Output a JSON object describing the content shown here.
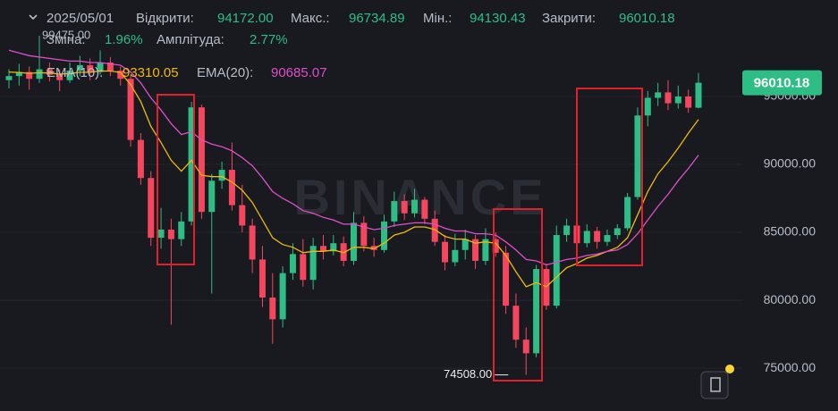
{
  "chart_data": {
    "type": "candlestick",
    "header": {
      "date": "2025/05/01",
      "open_label": "Відкрити:",
      "open": "94172.00",
      "high_label": "Макс.:",
      "high": "96734.89",
      "low_label": "Мін.:",
      "low": "94130.43",
      "close_label": "Закрити:",
      "close": "96010.18",
      "change_label": "Зміна:",
      "change": "1.96%",
      "amplitude_label": "Амплітуда:",
      "amplitude": "2.77%"
    },
    "watermark": "BINANCE",
    "candles": {
      "up_color": "#2ebd85",
      "down_color": "#f6465d",
      "open": [
        96200,
        96500,
        96800,
        96300,
        97000,
        96600,
        96200,
        96900,
        97300,
        96800,
        97500,
        96900,
        96300,
        91800,
        89000,
        84600,
        85200,
        84500,
        85800,
        94200,
        86500,
        88800,
        89600,
        87000,
        85500,
        83000,
        80200,
        78600,
        82000,
        83400,
        81500,
        84000,
        83600,
        84200,
        82900,
        85700,
        84000,
        83700,
        85800,
        87300,
        86400,
        87400,
        86000,
        84300,
        82800,
        83700,
        84500,
        82900,
        84500,
        83500,
        79600,
        77100,
        76100,
        82300,
        79600,
        84800,
        85500,
        84200,
        85100,
        84300,
        84800,
        85300,
        87600,
        93600,
        94900,
        95300,
        94500,
        95000,
        94172
      ],
      "high": [
        97000,
        97400,
        97200,
        99475,
        97500,
        97000,
        97500,
        98000,
        97800,
        98400,
        97900,
        97200,
        96600,
        92300,
        89500,
        86800,
        86000,
        86500,
        94600,
        94400,
        89300,
        90200,
        91600,
        88500,
        86000,
        84000,
        82000,
        82500,
        84200,
        84500,
        84600,
        84800,
        84800,
        84700,
        86500,
        86200,
        84600,
        86300,
        88000,
        87800,
        88200,
        87600,
        86600,
        84800,
        84900,
        85200,
        84800,
        85300,
        85000,
        84000,
        80500,
        78000,
        82600,
        82700,
        85500,
        86000,
        86200,
        85600,
        85400,
        85200,
        85600,
        87900,
        94200,
        95400,
        96000,
        96200,
        95800,
        95500,
        96734.89
      ],
      "low": [
        95600,
        95800,
        95500,
        96000,
        96100,
        95400,
        96000,
        96500,
        96200,
        96600,
        96500,
        95800,
        91300,
        88500,
        84000,
        83800,
        78200,
        84000,
        85500,
        86000,
        80500,
        88200,
        86600,
        85000,
        82000,
        79500,
        76800,
        78000,
        81500,
        81000,
        80800,
        83000,
        83300,
        82500,
        82600,
        83600,
        83200,
        83500,
        85400,
        85900,
        86100,
        85600,
        84000,
        82200,
        82500,
        83000,
        82300,
        82600,
        83200,
        79000,
        76500,
        74508,
        75800,
        79300,
        79400,
        84300,
        83800,
        83900,
        83800,
        84000,
        84500,
        85100,
        87400,
        92800,
        94300,
        94000,
        94100,
        93800,
        94130.43
      ],
      "close": [
        96500,
        96800,
        96300,
        97000,
        96600,
        96200,
        96900,
        97300,
        96800,
        97500,
        96900,
        96300,
        91800,
        89000,
        84600,
        85200,
        84500,
        85800,
        94200,
        86500,
        88800,
        89600,
        87000,
        85500,
        83000,
        80200,
        78600,
        82000,
        83400,
        81500,
        84000,
        83600,
        84200,
        82900,
        85700,
        84000,
        83700,
        85800,
        87300,
        86400,
        87400,
        86000,
        84300,
        82800,
        83700,
        84500,
        82900,
        84500,
        83500,
        79600,
        77100,
        76100,
        82300,
        79600,
        84800,
        85500,
        84200,
        85100,
        84300,
        84800,
        85300,
        87600,
        93600,
        94900,
        95300,
        94500,
        95000,
        94172,
        96010.18
      ]
    },
    "lines": [
      {
        "name": "EMA(10):",
        "color": "#f0b90b",
        "value_label": "93310.05",
        "values": [
          96800,
          96770,
          96700,
          96750,
          96720,
          96650,
          96680,
          96780,
          96780,
          96870,
          96870,
          96770,
          95870,
          94620,
          92800,
          91600,
          90300,
          89500,
          90300,
          89200,
          89100,
          89100,
          88700,
          88100,
          87200,
          85900,
          84600,
          84100,
          83900,
          83500,
          83600,
          83600,
          83700,
          83500,
          83900,
          83900,
          83800,
          84200,
          84800,
          85000,
          85400,
          85400,
          85200,
          84700,
          84500,
          84500,
          84200,
          84300,
          84200,
          83300,
          82100,
          81000,
          81300,
          81000,
          81700,
          82400,
          82700,
          83100,
          83300,
          83600,
          83900,
          84600,
          86300,
          88000,
          89300,
          90200,
          91200,
          92300,
          93310.05
        ]
      },
      {
        "name": "EMA(20):",
        "color": "#e04fc8",
        "value_label": "90685.07",
        "values": [
          98400,
          98200,
          98000,
          97900,
          97800,
          97700,
          97600,
          97600,
          97500,
          97500,
          97400,
          97300,
          96800,
          96000,
          94900,
          94000,
          93000,
          92200,
          92400,
          91800,
          91500,
          91300,
          91000,
          90500,
          89900,
          89000,
          88000,
          87500,
          87100,
          86600,
          86400,
          86100,
          85900,
          85600,
          85600,
          85400,
          85200,
          85300,
          85500,
          85600,
          85700,
          85700,
          85600,
          85300,
          85100,
          85100,
          84900,
          84900,
          84800,
          84300,
          83700,
          83000,
          82900,
          82600,
          82800,
          83000,
          83100,
          83300,
          83400,
          83600,
          83700,
          84100,
          84900,
          85900,
          86900,
          87800,
          88800,
          89700,
          90685.07
        ]
      }
    ],
    "annotations": [
      {
        "index": 3,
        "value": 99475,
        "label": "99475.00"
      },
      {
        "index": 51,
        "value": 74508,
        "label": "74508.00"
      }
    ],
    "last_price": {
      "value": 96010.18,
      "label": "96010.18"
    },
    "ylim": [
      71850,
      102100
    ],
    "yticks": [
      {
        "value": 75000,
        "label": "75000.00"
      },
      {
        "value": 80000,
        "label": "80000.00"
      },
      {
        "value": 85000,
        "label": "85000.00"
      },
      {
        "value": 90000,
        "label": "90000.00"
      },
      {
        "value": 95000,
        "label": "95000.00"
      }
    ],
    "grid": true
  }
}
